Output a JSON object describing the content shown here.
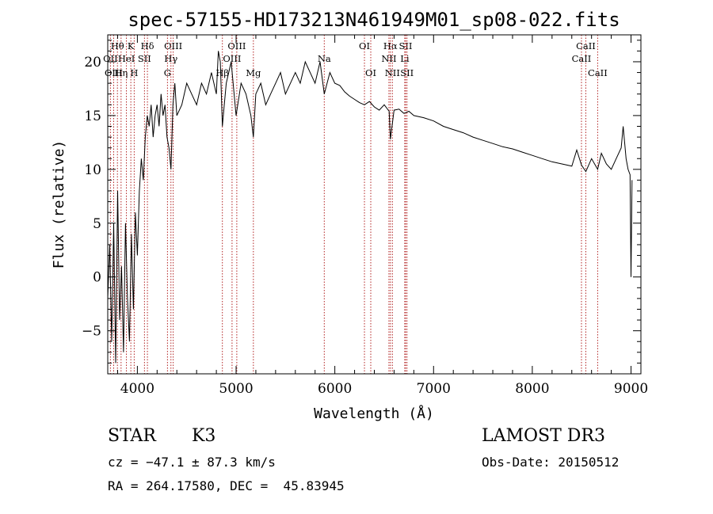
{
  "chart_data": {
    "type": "line",
    "title": "spec-57155-HD173213N461949M01_sp08-022.fits",
    "xlabel": "Wavelength (Å)",
    "ylabel": "Flux (relative)",
    "xlim": [
      3700,
      9100
    ],
    "ylim": [
      -9,
      22.5
    ],
    "xticks": [
      4000,
      5000,
      6000,
      7000,
      8000,
      9000
    ],
    "yticks": [
      -5,
      0,
      5,
      10,
      15,
      20
    ],
    "grid": false,
    "series": [
      {
        "name": "flux",
        "x": [
          3700,
          3720,
          3740,
          3760,
          3780,
          3800,
          3820,
          3840,
          3860,
          3880,
          3900,
          3920,
          3940,
          3960,
          3980,
          4000,
          4020,
          4040,
          4060,
          4080,
          4100,
          4120,
          4140,
          4160,
          4180,
          4200,
          4220,
          4240,
          4260,
          4280,
          4300,
          4320,
          4340,
          4360,
          4380,
          4400,
          4450,
          4500,
          4550,
          4600,
          4650,
          4700,
          4750,
          4800,
          4820,
          4840,
          4861,
          4880,
          4900,
          4950,
          5000,
          5050,
          5100,
          5150,
          5175,
          5200,
          5250,
          5300,
          5350,
          5400,
          5450,
          5500,
          5550,
          5600,
          5650,
          5700,
          5750,
          5800,
          5850,
          5893,
          5950,
          6000,
          6050,
          6100,
          6150,
          6200,
          6250,
          6300,
          6350,
          6400,
          6450,
          6500,
          6550,
          6563,
          6600,
          6650,
          6700,
          6750,
          6800,
          6900,
          7000,
          7100,
          7200,
          7300,
          7400,
          7500,
          7600,
          7700,
          7800,
          7900,
          8000,
          8100,
          8200,
          8300,
          8400,
          8450,
          8498,
          8542,
          8600,
          8662,
          8700,
          8750,
          8800,
          8850,
          8900,
          8920,
          8950,
          8970,
          8990,
          9000,
          9010
        ],
        "y": [
          -2,
          3,
          -6,
          5,
          -8,
          8,
          -4,
          1,
          -7,
          5,
          -2,
          -6,
          4,
          -3,
          6,
          2,
          8,
          11,
          9,
          13,
          15,
          14,
          16,
          13,
          15,
          16,
          14,
          17,
          15,
          16,
          13,
          12,
          10,
          16,
          18,
          15,
          16,
          18,
          17,
          16,
          18,
          17,
          19,
          17,
          21,
          20,
          14,
          16,
          18,
          20,
          15,
          18,
          17,
          15,
          13,
          17,
          18,
          16,
          17,
          18,
          19,
          17,
          18,
          19,
          18,
          20,
          19,
          18,
          20,
          17,
          19,
          18,
          17.8,
          17.2,
          16.8,
          16.5,
          16.2,
          16,
          16.3,
          15.8,
          15.5,
          16,
          15.4,
          12.8,
          15.5,
          15.6,
          15.2,
          15.4,
          15,
          14.8,
          14.5,
          14,
          13.7,
          13.4,
          13,
          12.7,
          12.4,
          12.1,
          11.9,
          11.6,
          11.3,
          11,
          10.7,
          10.5,
          10.3,
          11.8,
          10.4,
          9.8,
          11,
          10,
          11.5,
          10.5,
          10,
          11,
          12,
          14,
          11,
          10,
          9.5,
          0,
          9
        ]
      }
    ],
    "lines": [
      {
        "name": "Hθ",
        "x": 3798,
        "row": 1
      },
      {
        "name": "OII",
        "x": 3727,
        "row": 2
      },
      {
        "name": "OIII",
        "x": 3760,
        "row": 3
      },
      {
        "name": "K",
        "x": 3934,
        "row": 1
      },
      {
        "name": "HeI",
        "x": 3889,
        "row": 2
      },
      {
        "name": "Hη",
        "x": 3835,
        "row": 3
      },
      {
        "name": "H",
        "x": 3968,
        "row": 3
      },
      {
        "name": "Hδ",
        "x": 4102,
        "row": 1
      },
      {
        "name": "SII",
        "x": 4072,
        "row": 2
      },
      {
        "name": "OIII",
        "x": 4363,
        "row": 1
      },
      {
        "name": "Hγ",
        "x": 4340,
        "row": 2
      },
      {
        "name": "G",
        "x": 4305,
        "row": 3
      },
      {
        "name": "OIII",
        "x": 5007,
        "row": 1
      },
      {
        "name": "OIII",
        "x": 4959,
        "row": 2
      },
      {
        "name": "Hβ",
        "x": 4861,
        "row": 3
      },
      {
        "name": "Mg",
        "x": 5175,
        "row": 3
      },
      {
        "name": "Na",
        "x": 5893,
        "row": 2
      },
      {
        "name": "OI",
        "x": 6300,
        "row": 1
      },
      {
        "name": "OI",
        "x": 6364,
        "row": 3
      },
      {
        "name": "Hα",
        "x": 6563,
        "row": 1
      },
      {
        "name": "NII",
        "x": 6548,
        "row": 2
      },
      {
        "name": "NII",
        "x": 6583,
        "row": 3
      },
      {
        "name": "SII",
        "x": 6717,
        "row": 1
      },
      {
        "name": "Li",
        "x": 6708,
        "row": 2
      },
      {
        "name": "SII",
        "x": 6731,
        "row": 3
      },
      {
        "name": "CaII",
        "x": 8542,
        "row": 1
      },
      {
        "name": "CaII",
        "x": 8498,
        "row": 2
      },
      {
        "name": "CaII",
        "x": 8662,
        "row": 3
      }
    ]
  },
  "info": {
    "class_label": "STAR",
    "subclass": "K3",
    "survey": "LAMOST DR3",
    "cz": "cz = −47.1 ± 87.3 km/s",
    "obs_date": "Obs-Date: 20150512",
    "coords": "RA = 264.17580, DEC =  45.83945"
  }
}
